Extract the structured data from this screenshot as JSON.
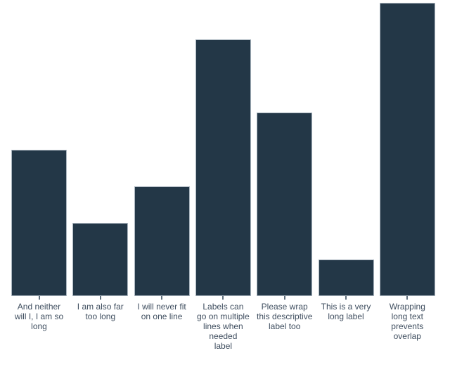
{
  "chart_data": {
    "type": "bar",
    "title": "",
    "xlabel": "",
    "ylabel": "",
    "grid": false,
    "legend": "none",
    "axes_visible": false,
    "ylim": [
      0,
      8
    ],
    "categories": [
      "And neither will I, I am so long",
      "I am also far too long",
      "I will never fit on one line",
      "Labels can go on multiple lines when needed label",
      "Please wrap this descriptive label too",
      "This is a very long label",
      "Wrapping long text prevents overlap"
    ],
    "label_lines": [
      [
        "And neither",
        "will I, I am so",
        "long"
      ],
      [
        "I am also far",
        "too long"
      ],
      [
        "I will never fit",
        "on one line"
      ],
      [
        "Labels can",
        "go on multiple",
        "lines when",
        "needed",
        "label"
      ],
      [
        "Please wrap",
        "this descriptive",
        "label too"
      ],
      [
        "This is a very",
        "long label"
      ],
      [
        "Wrapping",
        "long text",
        "prevents",
        "overlap"
      ]
    ],
    "values": [
      4,
      2,
      3,
      7,
      5,
      1,
      8
    ],
    "colors": {
      "background": "#ffffff",
      "bar_fill": "#233747",
      "bar_border": "#aab5bf",
      "tick": "#5f6e7c",
      "label_text": "#3f4e5f"
    }
  }
}
